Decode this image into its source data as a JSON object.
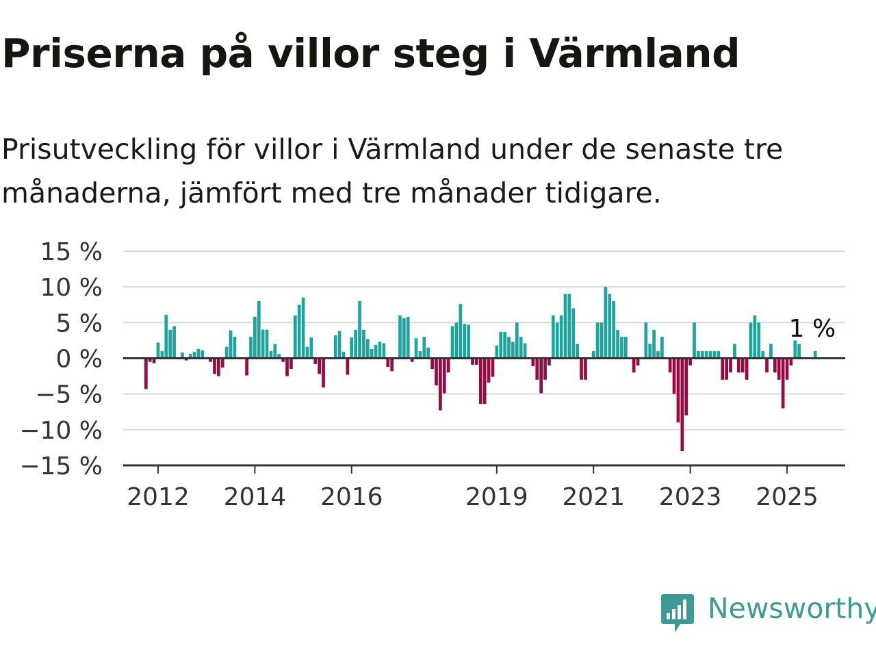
{
  "title": "Priserna på villor steg i Värmland",
  "subtitle": "Prisutveckling för villor i Värmland under de senaste tre månaderna, jämfört med tre månader tidigare.",
  "colors": {
    "positive": "#1ea49c",
    "negative": "#990a42",
    "grid": "#d9d9d9",
    "axis": "#333333",
    "brand": "#3d9b94"
  },
  "brand": {
    "name": "Newsworthy",
    "icon": "bar-chart-icon"
  },
  "chart_data": {
    "type": "bar",
    "title": "",
    "xlabel": "",
    "ylabel": "",
    "ylim": [
      -15,
      15
    ],
    "y_ticks": [
      15,
      10,
      5,
      0,
      -5,
      -10,
      -15
    ],
    "y_tick_labels": [
      "15 %",
      "10 %",
      "5 %",
      "0 %",
      "−5 %",
      "−10 %",
      "−15 %"
    ],
    "x_ticks": [
      "2012",
      "2014",
      "2016",
      "2019",
      "2021",
      "2023",
      "2025"
    ],
    "grid": true,
    "legend": "none",
    "start_month": "2011-10",
    "end_month": "2025-08",
    "last_value_label": "1 %",
    "series": [
      {
        "values": [
          -4.3,
          -0.5,
          -0.7,
          2.2,
          1.0,
          6.1,
          4.0,
          4.5,
          0.0,
          0.8,
          -0.3,
          0.6,
          0.9,
          1.3,
          1.1,
          0.0,
          -0.5,
          -2.2,
          -2.5,
          -1.3,
          1.6,
          3.9,
          3.0,
          0.0,
          0.0,
          -2.4,
          3.0,
          5.8,
          8.0,
          4.0,
          4.0,
          1.0,
          2.0,
          0.6,
          -0.5,
          -2.5,
          -1.5,
          6.0,
          7.5,
          8.5,
          1.6,
          2.9,
          -0.8,
          -2.2,
          -4.1,
          0.0,
          0.0,
          3.2,
          3.8,
          0.9,
          -2.3,
          2.9,
          4.0,
          8.0,
          4.0,
          2.7,
          1.3,
          1.9,
          2.3,
          2.1,
          -1.2,
          -1.8,
          0.0,
          6.0,
          5.6,
          5.8,
          -0.5,
          2.8,
          1.0,
          3.0,
          1.5,
          -1.5,
          -3.8,
          -7.3,
          -4.9,
          -2.0,
          4.5,
          5.0,
          7.6,
          4.8,
          4.7,
          -0.9,
          -0.9,
          -6.4,
          -6.4,
          -3.4,
          -2.6,
          1.8,
          3.7,
          3.7,
          3.0,
          2.3,
          5.0,
          3.0,
          2.1,
          0.0,
          -1.1,
          -3.0,
          -4.9,
          -3.0,
          -1.0,
          6.0,
          5.0,
          6.0,
          9.0,
          9.0,
          7.0,
          2.0,
          -3.0,
          -3.0,
          0.0,
          1.0,
          5.0,
          5.0,
          10.0,
          9.0,
          8.0,
          4.0,
          3.0,
          3.0,
          0.0,
          -2.0,
          -1.0,
          0.0,
          5.0,
          2.0,
          4.0,
          1.0,
          3.0,
          0.0,
          -2.0,
          -5.0,
          -9.0,
          -13.0,
          -8.0,
          -1.0,
          5.0,
          1.0,
          1.0,
          1.0,
          1.0,
          1.0,
          1.0,
          -3.0,
          -3.0,
          -2.0,
          2.0,
          -2.0,
          -2.0,
          -3.0,
          5.0,
          6.0,
          5.0,
          1.0,
          -2.0,
          2.0,
          -2.0,
          -3.0,
          -7.0,
          -3.0,
          -1.0,
          2.5,
          2.0,
          0.0,
          0.0,
          0.0,
          1.0
        ]
      }
    ]
  }
}
